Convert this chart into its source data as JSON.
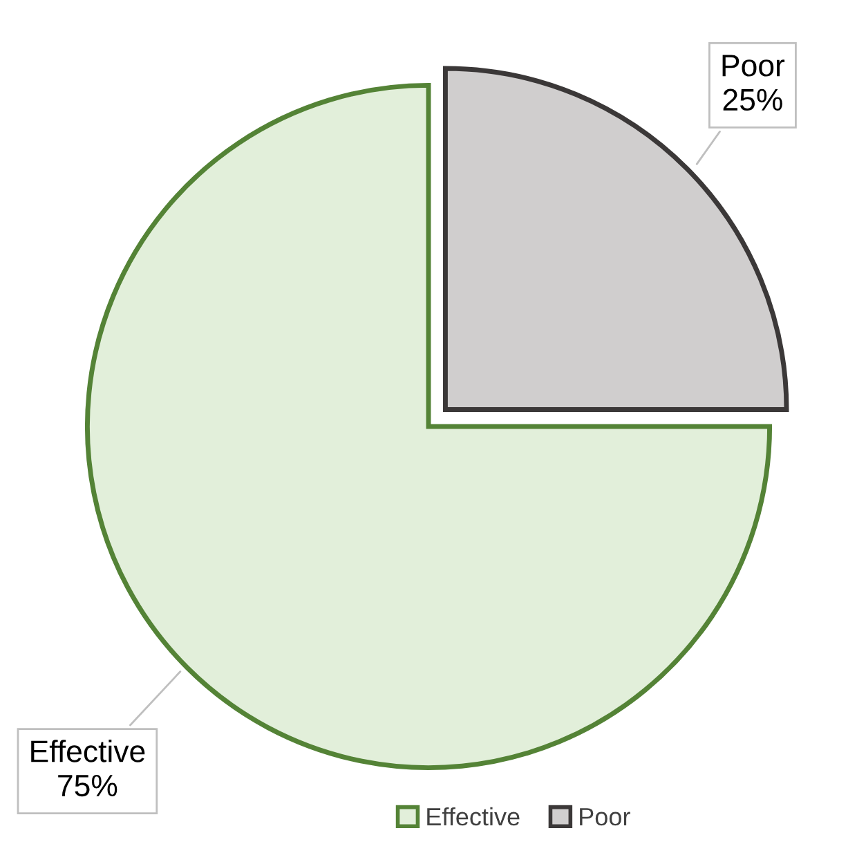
{
  "chart_data": {
    "type": "pie",
    "categories": [
      "Effective",
      "Poor"
    ],
    "values": [
      75,
      25
    ],
    "colors": [
      "#e2efda",
      "#d0cece"
    ],
    "value_labels": [
      "75%",
      "25%"
    ],
    "legend": "bottom"
  }
}
